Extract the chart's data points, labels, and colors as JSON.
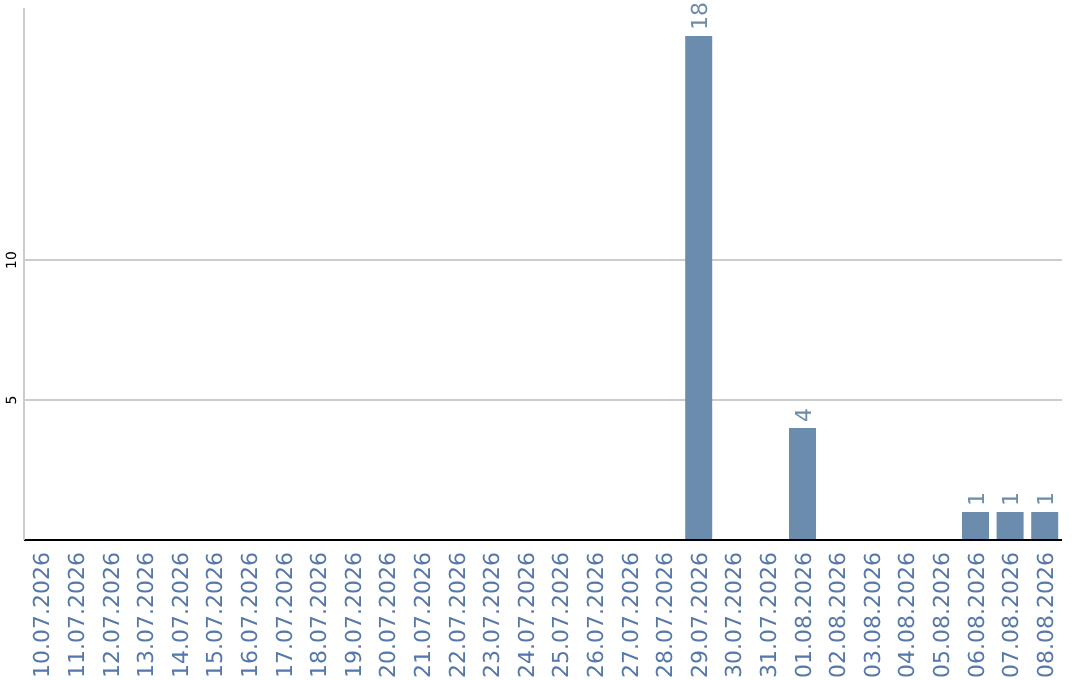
{
  "chart_data": {
    "type": "bar",
    "categories": [
      "10.07.2026",
      "11.07.2026",
      "12.07.2026",
      "13.07.2026",
      "14.07.2026",
      "15.07.2026",
      "16.07.2026",
      "17.07.2026",
      "18.07.2026",
      "19.07.2026",
      "20.07.2026",
      "21.07.2026",
      "22.07.2026",
      "23.07.2026",
      "24.07.2026",
      "25.07.2026",
      "26.07.2026",
      "27.07.2026",
      "28.07.2026",
      "29.07.2026",
      "30.07.2026",
      "31.07.2026",
      "01.08.2026",
      "02.08.2026",
      "03.08.2026",
      "04.08.2026",
      "05.08.2026",
      "06.08.2026",
      "07.08.2026",
      "08.08.2026"
    ],
    "values": [
      0,
      0,
      0,
      0,
      0,
      0,
      0,
      0,
      0,
      0,
      0,
      0,
      0,
      0,
      0,
      0,
      0,
      0,
      0,
      18,
      0,
      0,
      4,
      0,
      0,
      0,
      0,
      1,
      1,
      1
    ],
    "value_labels": [
      null,
      null,
      null,
      null,
      null,
      null,
      null,
      null,
      null,
      null,
      null,
      null,
      null,
      null,
      null,
      null,
      null,
      null,
      null,
      "18",
      null,
      null,
      "4",
      null,
      null,
      null,
      null,
      "1",
      "1",
      "1"
    ],
    "color": "#6b8cad",
    "ylim": [
      0,
      19
    ],
    "yticks": [
      5,
      10
    ],
    "grid": "y"
  }
}
